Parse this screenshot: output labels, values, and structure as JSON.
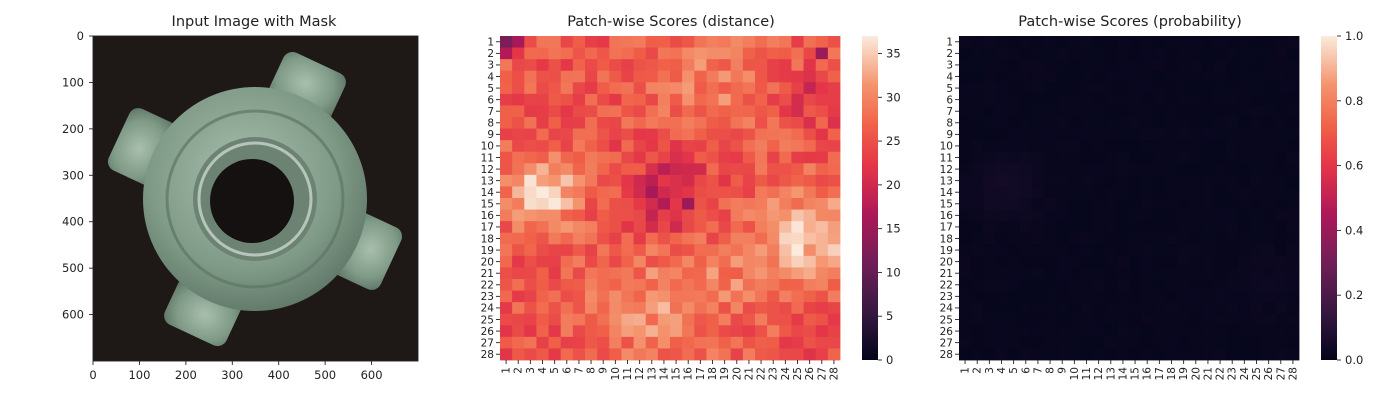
{
  "chart_data": [
    {
      "type": "image",
      "title": "Input Image with Mask",
      "xticks": [
        0,
        100,
        200,
        300,
        400,
        500,
        600
      ],
      "yticks": [
        0,
        100,
        200,
        300,
        400,
        500,
        600
      ],
      "xlim": [
        0,
        700
      ],
      "ylim": [
        0,
        700
      ],
      "background_color": "#1e1816",
      "object_color": "#7f9a87"
    },
    {
      "type": "heatmap",
      "title": "Patch-wise Scores (distance)",
      "rows": 28,
      "cols": 28,
      "row_labels": [
        "1",
        "2",
        "3",
        "4",
        "5",
        "6",
        "7",
        "8",
        "9",
        "10",
        "11",
        "12",
        "13",
        "14",
        "15",
        "16",
        "17",
        "18",
        "19",
        "20",
        "21",
        "22",
        "23",
        "24",
        "25",
        "26",
        "27",
        "28"
      ],
      "col_labels": [
        "1",
        "2",
        "3",
        "4",
        "5",
        "6",
        "7",
        "8",
        "9",
        "10",
        "11",
        "12",
        "13",
        "14",
        "15",
        "16",
        "17",
        "18",
        "19",
        "20",
        "21",
        "22",
        "23",
        "24",
        "25",
        "26",
        "27",
        "28"
      ],
      "colorbar_ticks": [
        0,
        5,
        10,
        15,
        20,
        25,
        30,
        35
      ],
      "vmin": 0,
      "vmax": 37,
      "colormap": "rocket",
      "values_pattern": "hotspots near rows 12-16 cols 3-5 and rows 14-22 cols 24-27 (about 36); dark minima at row 1 col 1 (about 12) and near rows 13-15 cols 13-16 (about 18); typical values 22-30"
    },
    {
      "type": "heatmap",
      "title": "Patch-wise Scores (probability)",
      "rows": 28,
      "cols": 28,
      "row_labels": [
        "1",
        "2",
        "3",
        "4",
        "5",
        "6",
        "7",
        "8",
        "9",
        "10",
        "11",
        "12",
        "13",
        "14",
        "15",
        "16",
        "17",
        "18",
        "19",
        "20",
        "21",
        "22",
        "23",
        "24",
        "25",
        "26",
        "27",
        "28"
      ],
      "col_labels": [
        "1",
        "2",
        "3",
        "4",
        "5",
        "6",
        "7",
        "8",
        "9",
        "10",
        "11",
        "12",
        "13",
        "14",
        "15",
        "16",
        "17",
        "18",
        "19",
        "20",
        "21",
        "22",
        "23",
        "24",
        "25",
        "26",
        "27",
        "28"
      ],
      "colorbar_ticks": [
        "0.0",
        "0.2",
        "0.4",
        "0.6",
        "0.8",
        "1.0"
      ],
      "vmin": 0,
      "vmax": 1,
      "colormap": "rocket",
      "values_pattern": "all values near 0.0 (about 0.01), slightly higher (about 0.03) near rows 11-16 cols 3-6"
    }
  ]
}
